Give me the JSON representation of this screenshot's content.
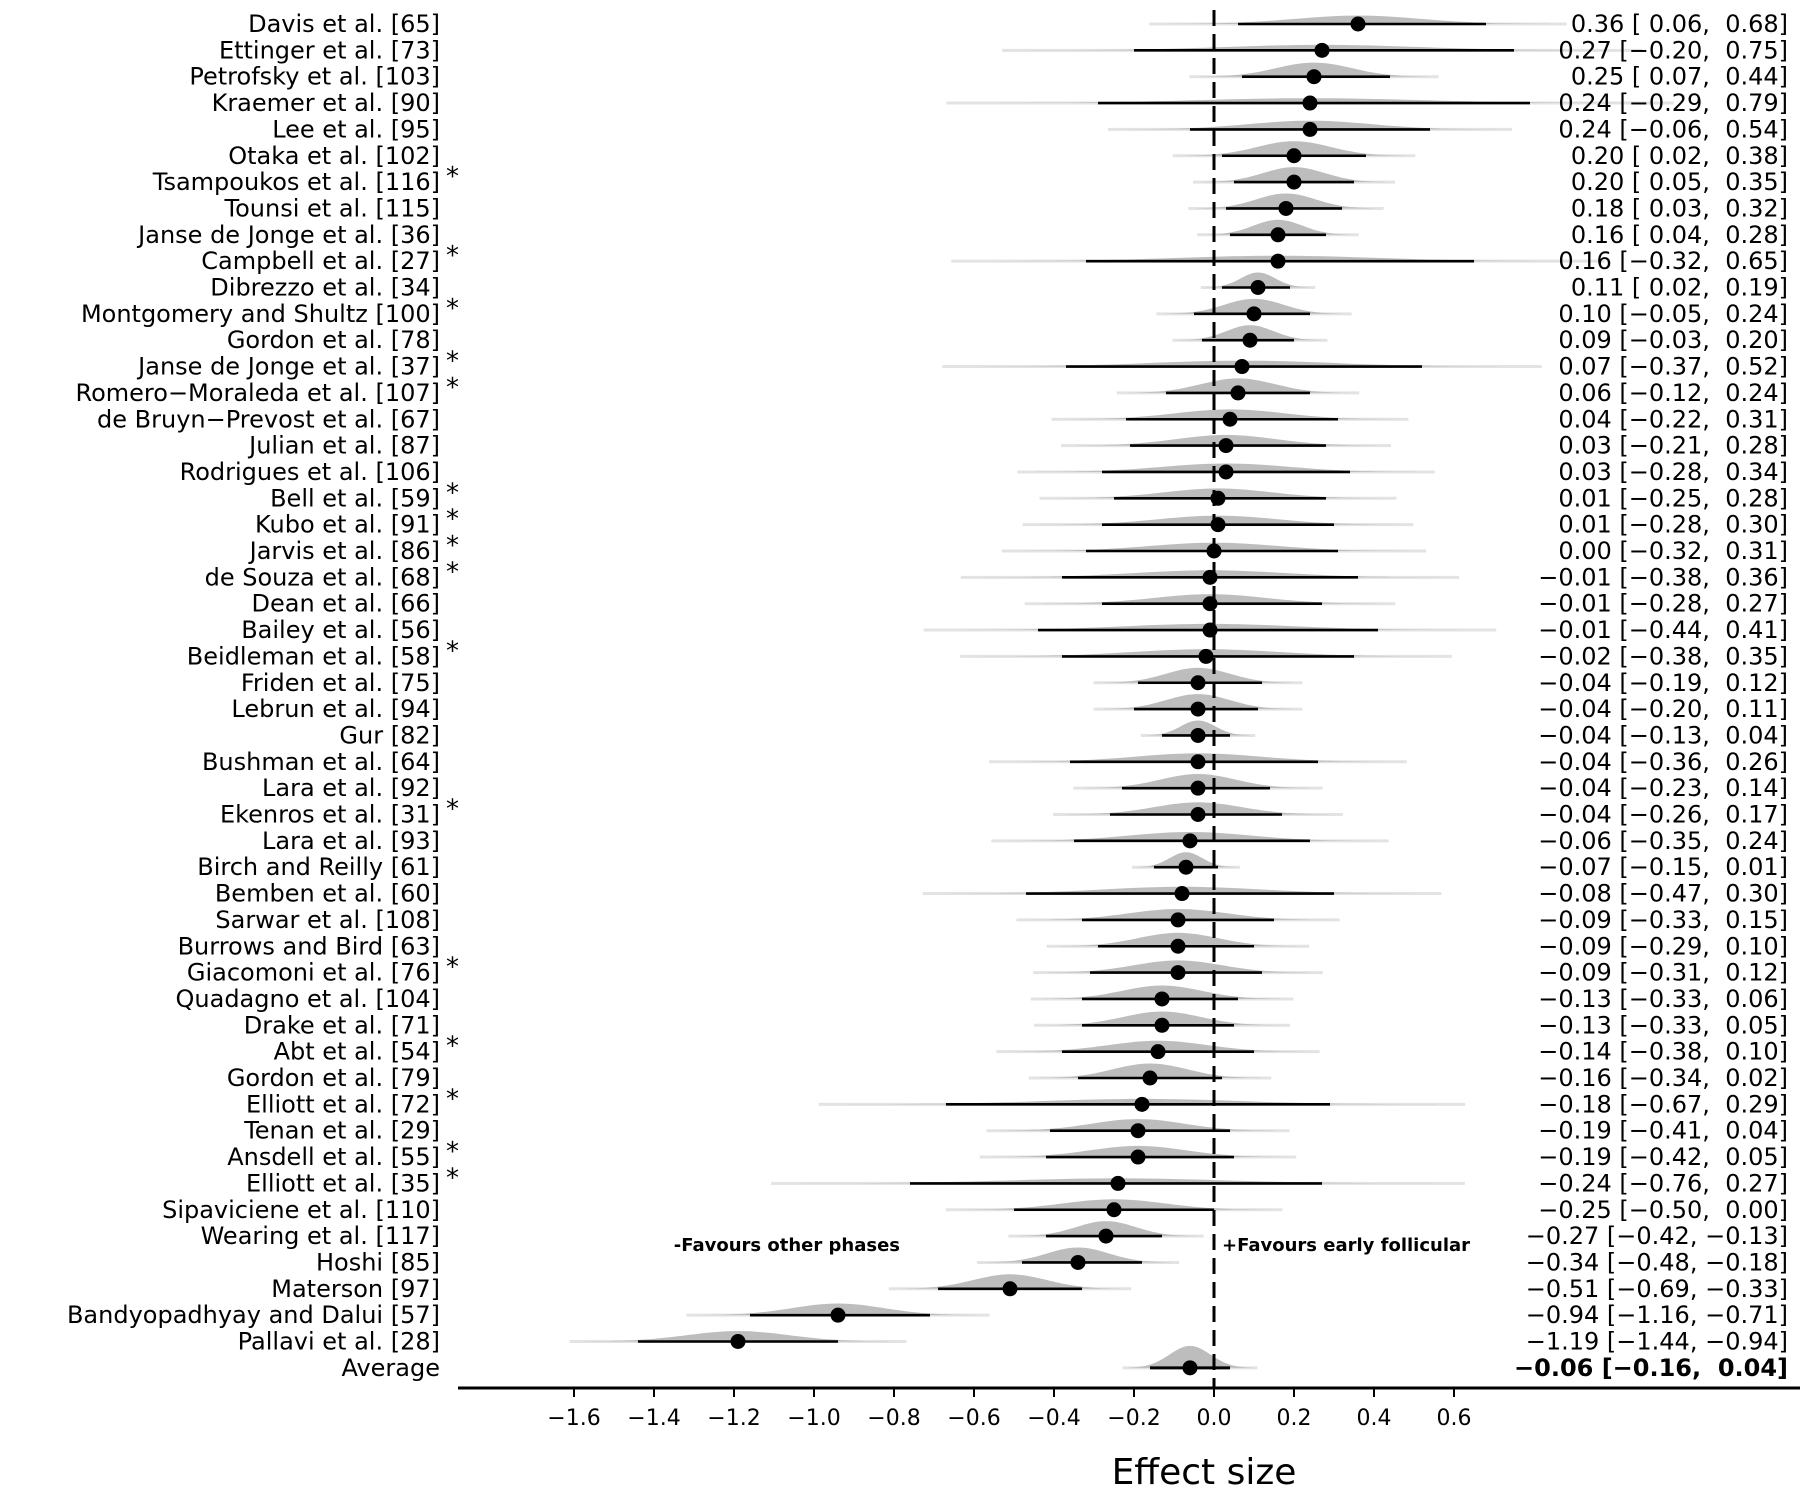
{
  "chart_data": {
    "type": "forest",
    "xlabel": "Effect size",
    "xlim": [
      -1.8,
      0.85
    ],
    "xticks": [
      "-1.6",
      "-1.4",
      "-1.2",
      "-1.0",
      "-0.8",
      "-0.6",
      "-0.4",
      "-0.2",
      "0.0",
      "0.2",
      "0.4",
      "0.6"
    ],
    "reference_line": 0,
    "annotations": {
      "left": "-Favours other phases",
      "right": "+Favours early follicular"
    },
    "studies": [
      {
        "label": "Davis et al. [65]",
        "star": false,
        "est": 0.36,
        "lo": 0.06,
        "hi": 0.68,
        "text": "0.36 [ 0.06,  0.68]"
      },
      {
        "label": "Ettinger et al. [73]",
        "star": false,
        "est": 0.27,
        "lo": -0.2,
        "hi": 0.75,
        "text": "0.27 [−0.20,  0.75]"
      },
      {
        "label": "Petrofsky et al. [103]",
        "star": false,
        "est": 0.25,
        "lo": 0.07,
        "hi": 0.44,
        "text": "0.25 [ 0.07,  0.44]"
      },
      {
        "label": "Kraemer et al. [90]",
        "star": false,
        "est": 0.24,
        "lo": -0.29,
        "hi": 0.79,
        "text": "0.24 [−0.29,  0.79]"
      },
      {
        "label": "Lee et al. [95]",
        "star": false,
        "est": 0.24,
        "lo": -0.06,
        "hi": 0.54,
        "text": "0.24 [−0.06,  0.54]"
      },
      {
        "label": "Otaka et al. [102]",
        "star": false,
        "est": 0.2,
        "lo": 0.02,
        "hi": 0.38,
        "text": "0.20 [ 0.02,  0.38]"
      },
      {
        "label": "Tsampoukos et al. [116]",
        "star": true,
        "est": 0.2,
        "lo": 0.05,
        "hi": 0.35,
        "text": "0.20 [ 0.05,  0.35]"
      },
      {
        "label": "Tounsi et al. [115]",
        "star": false,
        "est": 0.18,
        "lo": 0.03,
        "hi": 0.32,
        "text": "0.18 [ 0.03,  0.32]"
      },
      {
        "label": "Janse de Jonge et al. [36]",
        "star": false,
        "est": 0.16,
        "lo": 0.04,
        "hi": 0.28,
        "text": "0.16 [ 0.04,  0.28]"
      },
      {
        "label": "Campbell et al. [27]",
        "star": true,
        "est": 0.16,
        "lo": -0.32,
        "hi": 0.65,
        "text": "0.16 [−0.32,  0.65]"
      },
      {
        "label": "Dibrezzo et al. [34]",
        "star": false,
        "est": 0.11,
        "lo": 0.02,
        "hi": 0.19,
        "text": "0.11 [ 0.02,  0.19]"
      },
      {
        "label": "Montgomery and Shultz [100]",
        "star": true,
        "est": 0.1,
        "lo": -0.05,
        "hi": 0.24,
        "text": "0.10 [−0.05,  0.24]"
      },
      {
        "label": "Gordon et al. [78]",
        "star": false,
        "est": 0.09,
        "lo": -0.03,
        "hi": 0.2,
        "text": "0.09 [−0.03,  0.20]"
      },
      {
        "label": "Janse de Jonge et al. [37]",
        "star": true,
        "est": 0.07,
        "lo": -0.37,
        "hi": 0.52,
        "text": "0.07 [−0.37,  0.52]"
      },
      {
        "label": "Romero−Moraleda et al. [107]",
        "star": true,
        "est": 0.06,
        "lo": -0.12,
        "hi": 0.24,
        "text": "0.06 [−0.12,  0.24]"
      },
      {
        "label": "de Bruyn−Prevost et al. [67]",
        "star": false,
        "est": 0.04,
        "lo": -0.22,
        "hi": 0.31,
        "text": "0.04 [−0.22,  0.31]"
      },
      {
        "label": "Julian et al. [87]",
        "star": false,
        "est": 0.03,
        "lo": -0.21,
        "hi": 0.28,
        "text": "0.03 [−0.21,  0.28]"
      },
      {
        "label": "Rodrigues et al. [106]",
        "star": false,
        "est": 0.03,
        "lo": -0.28,
        "hi": 0.34,
        "text": "0.03 [−0.28,  0.34]"
      },
      {
        "label": "Bell et al. [59]",
        "star": true,
        "est": 0.01,
        "lo": -0.25,
        "hi": 0.28,
        "text": "0.01 [−0.25,  0.28]"
      },
      {
        "label": "Kubo et al. [91]",
        "star": true,
        "est": 0.01,
        "lo": -0.28,
        "hi": 0.3,
        "text": "0.01 [−0.28,  0.30]"
      },
      {
        "label": "Jarvis et al. [86]",
        "star": true,
        "est": 0.0,
        "lo": -0.32,
        "hi": 0.31,
        "text": "0.00 [−0.32,  0.31]"
      },
      {
        "label": "de Souza et al. [68]",
        "star": true,
        "est": -0.01,
        "lo": -0.38,
        "hi": 0.36,
        "text": "−0.01 [−0.38,  0.36]"
      },
      {
        "label": "Dean et al. [66]",
        "star": false,
        "est": -0.01,
        "lo": -0.28,
        "hi": 0.27,
        "text": "−0.01 [−0.28,  0.27]"
      },
      {
        "label": "Bailey et al. [56]",
        "star": false,
        "est": -0.01,
        "lo": -0.44,
        "hi": 0.41,
        "text": "−0.01 [−0.44,  0.41]"
      },
      {
        "label": "Beidleman et al. [58]",
        "star": true,
        "est": -0.02,
        "lo": -0.38,
        "hi": 0.35,
        "text": "−0.02 [−0.38,  0.35]"
      },
      {
        "label": "Friden et al. [75]",
        "star": false,
        "est": -0.04,
        "lo": -0.19,
        "hi": 0.12,
        "text": "−0.04 [−0.19,  0.12]"
      },
      {
        "label": "Lebrun et al. [94]",
        "star": false,
        "est": -0.04,
        "lo": -0.2,
        "hi": 0.11,
        "text": "−0.04 [−0.20,  0.11]"
      },
      {
        "label": "Gur [82]",
        "star": false,
        "est": -0.04,
        "lo": -0.13,
        "hi": 0.04,
        "text": "−0.04 [−0.13,  0.04]"
      },
      {
        "label": "Bushman et al. [64]",
        "star": false,
        "est": -0.04,
        "lo": -0.36,
        "hi": 0.26,
        "text": "−0.04 [−0.36,  0.26]"
      },
      {
        "label": "Lara et al. [92]",
        "star": false,
        "est": -0.04,
        "lo": -0.23,
        "hi": 0.14,
        "text": "−0.04 [−0.23,  0.14]"
      },
      {
        "label": "Ekenros et al. [31]",
        "star": true,
        "est": -0.04,
        "lo": -0.26,
        "hi": 0.17,
        "text": "−0.04 [−0.26,  0.17]"
      },
      {
        "label": "Lara et al. [93]",
        "star": false,
        "est": -0.06,
        "lo": -0.35,
        "hi": 0.24,
        "text": "−0.06 [−0.35,  0.24]"
      },
      {
        "label": "Birch and Reilly [61]",
        "star": false,
        "est": -0.07,
        "lo": -0.15,
        "hi": 0.01,
        "text": "−0.07 [−0.15,  0.01]"
      },
      {
        "label": "Bemben et al. [60]",
        "star": false,
        "est": -0.08,
        "lo": -0.47,
        "hi": 0.3,
        "text": "−0.08 [−0.47,  0.30]"
      },
      {
        "label": "Sarwar et al. [108]",
        "star": false,
        "est": -0.09,
        "lo": -0.33,
        "hi": 0.15,
        "text": "−0.09 [−0.33,  0.15]"
      },
      {
        "label": "Burrows and Bird [63]",
        "star": false,
        "est": -0.09,
        "lo": -0.29,
        "hi": 0.1,
        "text": "−0.09 [−0.29,  0.10]"
      },
      {
        "label": "Giacomoni et al. [76]",
        "star": true,
        "est": -0.09,
        "lo": -0.31,
        "hi": 0.12,
        "text": "−0.09 [−0.31,  0.12]"
      },
      {
        "label": "Quadagno et al. [104]",
        "star": false,
        "est": -0.13,
        "lo": -0.33,
        "hi": 0.06,
        "text": "−0.13 [−0.33,  0.06]"
      },
      {
        "label": "Drake et al. [71]",
        "star": false,
        "est": -0.13,
        "lo": -0.33,
        "hi": 0.05,
        "text": "−0.13 [−0.33,  0.05]"
      },
      {
        "label": "Abt et al. [54]",
        "star": true,
        "est": -0.14,
        "lo": -0.38,
        "hi": 0.1,
        "text": "−0.14 [−0.38,  0.10]"
      },
      {
        "label": "Gordon et al. [79]",
        "star": false,
        "est": -0.16,
        "lo": -0.34,
        "hi": 0.02,
        "text": "−0.16 [−0.34,  0.02]"
      },
      {
        "label": "Elliott et al. [72]",
        "star": true,
        "est": -0.18,
        "lo": -0.67,
        "hi": 0.29,
        "text": "−0.18 [−0.67,  0.29]"
      },
      {
        "label": "Tenan et al. [29]",
        "star": false,
        "est": -0.19,
        "lo": -0.41,
        "hi": 0.04,
        "text": "−0.19 [−0.41,  0.04]"
      },
      {
        "label": "Ansdell et al. [55]",
        "star": true,
        "est": -0.19,
        "lo": -0.42,
        "hi": 0.05,
        "text": "−0.19 [−0.42,  0.05]"
      },
      {
        "label": "Elliott et al. [35]",
        "star": true,
        "est": -0.24,
        "lo": -0.76,
        "hi": 0.27,
        "text": "−0.24 [−0.76,  0.27]"
      },
      {
        "label": "Sipaviciene et al. [110]",
        "star": false,
        "est": -0.25,
        "lo": -0.5,
        "hi": 0.0,
        "text": "−0.25 [−0.50,  0.00]"
      },
      {
        "label": "Wearing et al. [117]",
        "star": false,
        "est": -0.27,
        "lo": -0.42,
        "hi": -0.13,
        "text": "−0.27 [−0.42, −0.13]"
      },
      {
        "label": "Hoshi [85]",
        "star": false,
        "est": -0.34,
        "lo": -0.48,
        "hi": -0.18,
        "text": "−0.34 [−0.48, −0.18]"
      },
      {
        "label": "Materson [97]",
        "star": false,
        "est": -0.51,
        "lo": -0.69,
        "hi": -0.33,
        "text": "−0.51 [−0.69, −0.33]"
      },
      {
        "label": "Bandyopadhyay and Dalui [57]",
        "star": false,
        "est": -0.94,
        "lo": -1.16,
        "hi": -0.71,
        "text": "−0.94 [−1.16, −0.71]"
      },
      {
        "label": "Pallavi et al. [28]",
        "star": false,
        "est": -1.19,
        "lo": -1.44,
        "hi": -0.94,
        "text": "−1.19 [−1.44, −0.94]"
      }
    ],
    "average": {
      "label": "Average",
      "est": -0.06,
      "lo": -0.16,
      "hi": 0.04,
      "text": "−0.06 [−0.16,  0.04]"
    },
    "colors": {
      "point": "#000000",
      "ci": "#000000",
      "density": "#bdbdbd",
      "density_tail": "#e3e3e3",
      "reference": "#000000"
    }
  }
}
